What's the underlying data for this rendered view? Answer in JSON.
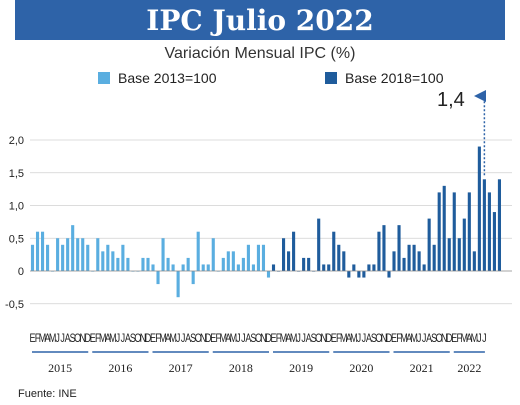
{
  "header": {
    "title": "IPC Julio 2022"
  },
  "subtitle": "Variación Mensual IPC (%)",
  "legend": [
    {
      "label": "Base 2013=100",
      "color": "#5aaee0"
    },
    {
      "label": "Base 2018=100",
      "color": "#1f5c9c"
    }
  ],
  "callout": {
    "label": "1,4",
    "icon": "dotted-arrow-icon"
  },
  "source": "Fuente: INE",
  "chart_data": {
    "type": "bar",
    "title": "",
    "xlabel": "",
    "ylabel": "",
    "ylim": [
      -0.5,
      2.0
    ],
    "yticks": [
      -0.5,
      0,
      0.5,
      1.0,
      1.5,
      2.0
    ],
    "ytick_labels": [
      "-0,5",
      "0",
      "0,5",
      "1,0",
      "1,5",
      "2,0"
    ],
    "grid": true,
    "legend_position": "top",
    "month_letters": [
      "E",
      "F",
      "M",
      "A",
      "M",
      "J",
      "J",
      "A",
      "S",
      "O",
      "N",
      "D"
    ],
    "years": [
      "2015",
      "2016",
      "2017",
      "2018",
      "2019",
      "2020",
      "2021",
      "2022"
    ],
    "series": [
      {
        "name": "Base 2013=100",
        "color": "#5aaee0",
        "start": "2015-01",
        "values": [
          0.4,
          0.6,
          0.6,
          0.4,
          0.0,
          0.5,
          0.4,
          0.5,
          0.7,
          0.5,
          0.5,
          0.4,
          0.0,
          0.5,
          0.3,
          0.4,
          0.3,
          0.2,
          0.4,
          0.2,
          0.0,
          0.0,
          0.2,
          0.2,
          0.1,
          -0.2,
          0.5,
          0.2,
          0.1,
          -0.4,
          0.1,
          0.2,
          -0.2,
          0.6,
          0.1,
          0.1,
          0.5,
          0.0,
          0.2,
          0.3,
          0.3,
          0.1,
          0.2,
          0.4,
          0.1,
          0.4,
          0.4,
          -0.1
        ]
      },
      {
        "name": "Base 2018=100",
        "color": "#1f5c9c",
        "start": "2019-01",
        "values": [
          0.1,
          0.0,
          0.5,
          0.3,
          0.6,
          0.0,
          0.2,
          0.2,
          0.0,
          0.8,
          0.1,
          0.1,
          0.6,
          0.4,
          0.3,
          -0.1,
          0.1,
          -0.1,
          -0.1,
          0.1,
          0.1,
          0.6,
          0.7,
          -0.1,
          0.3,
          0.7,
          0.2,
          0.4,
          0.4,
          0.3,
          0.1,
          0.8,
          0.4,
          1.2,
          1.3,
          0.5,
          1.2,
          0.5,
          0.8,
          1.2,
          0.3,
          1.9,
          1.4,
          1.2,
          0.9,
          1.4
        ]
      }
    ],
    "annotations": [
      {
        "text": "1,4",
        "target": "2022-07"
      }
    ]
  }
}
